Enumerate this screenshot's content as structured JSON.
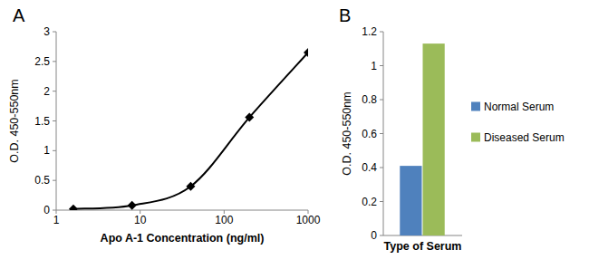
{
  "chart_data": [
    {
      "type": "line",
      "title": "A",
      "x_label": "Apo A-1 Concentration (ng/ml)",
      "y_label": "O.D. 450-550nm",
      "x": [
        1.6,
        8,
        40,
        200,
        1000
      ],
      "values": [
        0.02,
        0.08,
        0.4,
        1.56,
        2.65
      ],
      "xlim": [
        1,
        1000
      ],
      "xticks": [
        1,
        10,
        100,
        1000
      ],
      "log": "x",
      "ylim": [
        0,
        3
      ],
      "yticks": [
        0,
        0.5,
        1,
        1.5,
        2,
        2.5,
        3
      ],
      "color": "#000000",
      "marker": "diamond",
      "line_style": "smooth",
      "grid": false
    },
    {
      "type": "bar",
      "title": "B",
      "x_label": "Type of Serum",
      "y_label": "O.D. 450-550nm",
      "categories": [
        null
      ],
      "series": [
        {
          "name": "Normal Serum",
          "color": "#4f81bd",
          "values": [
            0.41
          ]
        },
        {
          "name": "Diseased Serum",
          "color": "#9bbb59",
          "values": [
            1.13
          ]
        }
      ],
      "ylim": [
        0,
        1.2
      ],
      "yticks": [
        0,
        0.2,
        0.4,
        0.6,
        0.8,
        1,
        1.2
      ],
      "legend": "right",
      "grid": false
    }
  ]
}
